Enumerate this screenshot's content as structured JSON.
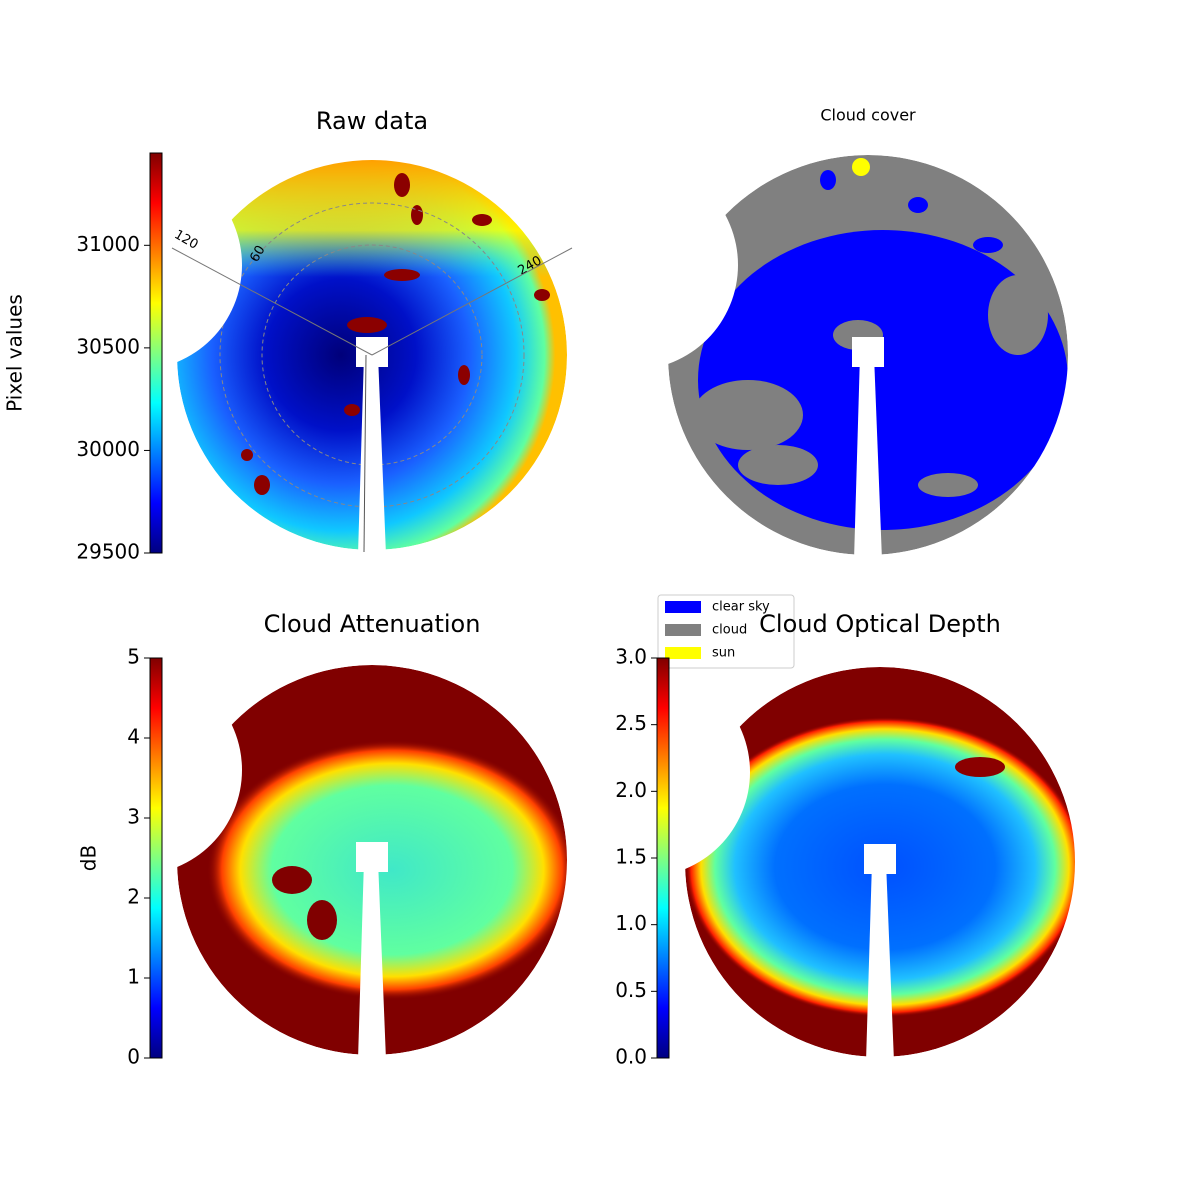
{
  "chart_data": [
    {
      "type": "image",
      "title": "Raw data",
      "colorbar_label": "Pixel values",
      "colormap": "jet",
      "clim": [
        29500,
        31450
      ],
      "cticks": [
        29500,
        30000,
        30500,
        31000
      ],
      "annotations": [
        "120",
        "60",
        "240"
      ]
    },
    {
      "type": "categorical_image",
      "title": "Cloud cover",
      "series": [
        {
          "name": "clear sky",
          "color": "#0000ff"
        },
        {
          "name": "cloud",
          "color": "#808080"
        },
        {
          "name": "sun",
          "color": "#ffff00"
        }
      ]
    },
    {
      "type": "image",
      "title": "Cloud Attenuation",
      "colorbar_label": "dB",
      "colormap": "jet",
      "clim": [
        0,
        5
      ],
      "cticks": [
        0,
        1,
        2,
        3,
        4,
        5
      ]
    },
    {
      "type": "image",
      "title": "Cloud Optical Depth",
      "colormap": "jet",
      "clim": [
        0,
        3
      ],
      "cticks": [
        {
          "value": 0,
          "label": "0.0"
        },
        {
          "value": 0.5,
          "label": "0.5"
        },
        {
          "value": 1,
          "label": "1.0"
        },
        {
          "value": 1.5,
          "label": "1.5"
        },
        {
          "value": 2,
          "label": "2.0"
        },
        {
          "value": 2.5,
          "label": "2.5"
        },
        {
          "value": 3,
          "label": "3.0"
        }
      ]
    }
  ]
}
